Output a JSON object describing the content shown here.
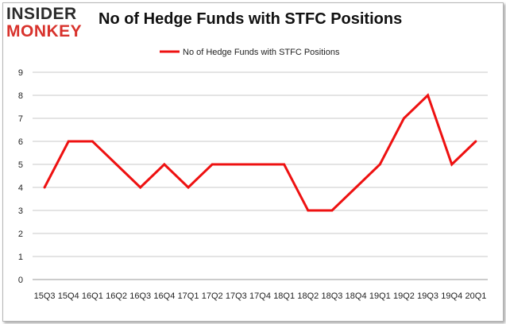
{
  "logo": {
    "line1": "INSIDER",
    "line2": "MONKEY"
  },
  "chart_data": {
    "type": "line",
    "title": "No of Hedge Funds with STFC Positions",
    "xlabel": "",
    "ylabel": "",
    "categories": [
      "15Q3",
      "15Q4",
      "16Q1",
      "16Q2",
      "16Q3",
      "16Q4",
      "17Q1",
      "17Q2",
      "17Q3",
      "17Q4",
      "18Q1",
      "18Q2",
      "18Q3",
      "18Q4",
      "19Q1",
      "19Q2",
      "19Q3",
      "19Q4",
      "20Q1"
    ],
    "series": [
      {
        "name": "No of Hedge Funds with STFC Positions",
        "values": [
          4,
          6,
          6,
          5,
          4,
          5,
          4,
          5,
          5,
          5,
          5,
          3,
          3,
          4,
          5,
          7,
          8,
          5,
          6
        ],
        "color": "#ee1111"
      }
    ],
    "ylim": [
      0,
      9
    ],
    "yticks": [
      0,
      1,
      2,
      3,
      4,
      5,
      6,
      7,
      8,
      9
    ],
    "grid": true,
    "legend": "top-center"
  }
}
